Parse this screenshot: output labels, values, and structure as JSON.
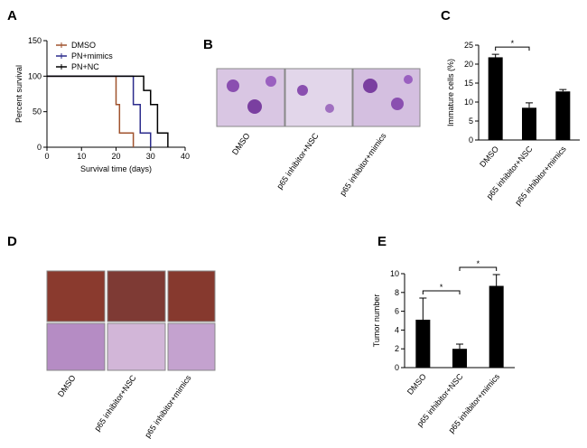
{
  "panel_labels": {
    "b": "B",
    "d": "D"
  },
  "image_captions": {
    "b": [
      "DMSO",
      "p65 inhibitor+NSC",
      "p65 inhibitor+mimics"
    ],
    "d": [
      "DMSO",
      "p65 inhibitor+NSC",
      "p65 inhibitor+mimics"
    ]
  },
  "chart_data": [
    {
      "type": "step",
      "panel": "A",
      "ylabel": "Percent survival",
      "xlabel": "Survival time (days)",
      "xlim": [
        0,
        40
      ],
      "xticks": [
        0,
        10,
        20,
        30,
        40
      ],
      "ylim": [
        0,
        150
      ],
      "yticks": [
        0,
        50,
        100,
        150
      ],
      "legend": "top-left",
      "series": [
        {
          "name": "DMSO",
          "color": "#a0522d",
          "x": [
            0,
            20,
            21,
            25
          ],
          "values": [
            100,
            60,
            20,
            0
          ]
        },
        {
          "name": "PN+mimics",
          "color": "#2b2b8c",
          "x": [
            0,
            25,
            27,
            30
          ],
          "values": [
            100,
            60,
            20,
            0
          ]
        },
        {
          "name": "PN+NC",
          "color": "#000000",
          "x": [
            0,
            28,
            30,
            32,
            35
          ],
          "values": [
            100,
            80,
            60,
            20,
            0
          ]
        }
      ]
    },
    {
      "type": "bar",
      "panel": "C",
      "ylabel": "Immature cells (%)",
      "categories": [
        "DMSO",
        "p65 inhibitor+NSC",
        "p65 inhibitor+mimics"
      ],
      "values": [
        21.8,
        8.5,
        12.8
      ],
      "errors": [
        0.8,
        1.3,
        0.5
      ],
      "color": "#000000",
      "ylim": [
        0,
        25
      ],
      "yticks": [
        0,
        5,
        10,
        15,
        20,
        25
      ],
      "significance": [
        {
          "from": 0,
          "to": 1,
          "label": "*"
        }
      ]
    },
    {
      "type": "bar",
      "panel": "E",
      "ylabel": "Tumor number",
      "categories": [
        "DMSO",
        "p65 inhibitor+NSC",
        "p65 inhibitor+mimics"
      ],
      "values": [
        5.1,
        2.0,
        8.7
      ],
      "errors": [
        2.3,
        0.5,
        1.2
      ],
      "color": "#000000",
      "ylim": [
        0,
        10
      ],
      "yticks": [
        0,
        2,
        4,
        6,
        8,
        10
      ],
      "significance": [
        {
          "from": 0,
          "to": 1,
          "label": "*"
        },
        {
          "from": 1,
          "to": 2,
          "label": "*"
        }
      ]
    }
  ]
}
